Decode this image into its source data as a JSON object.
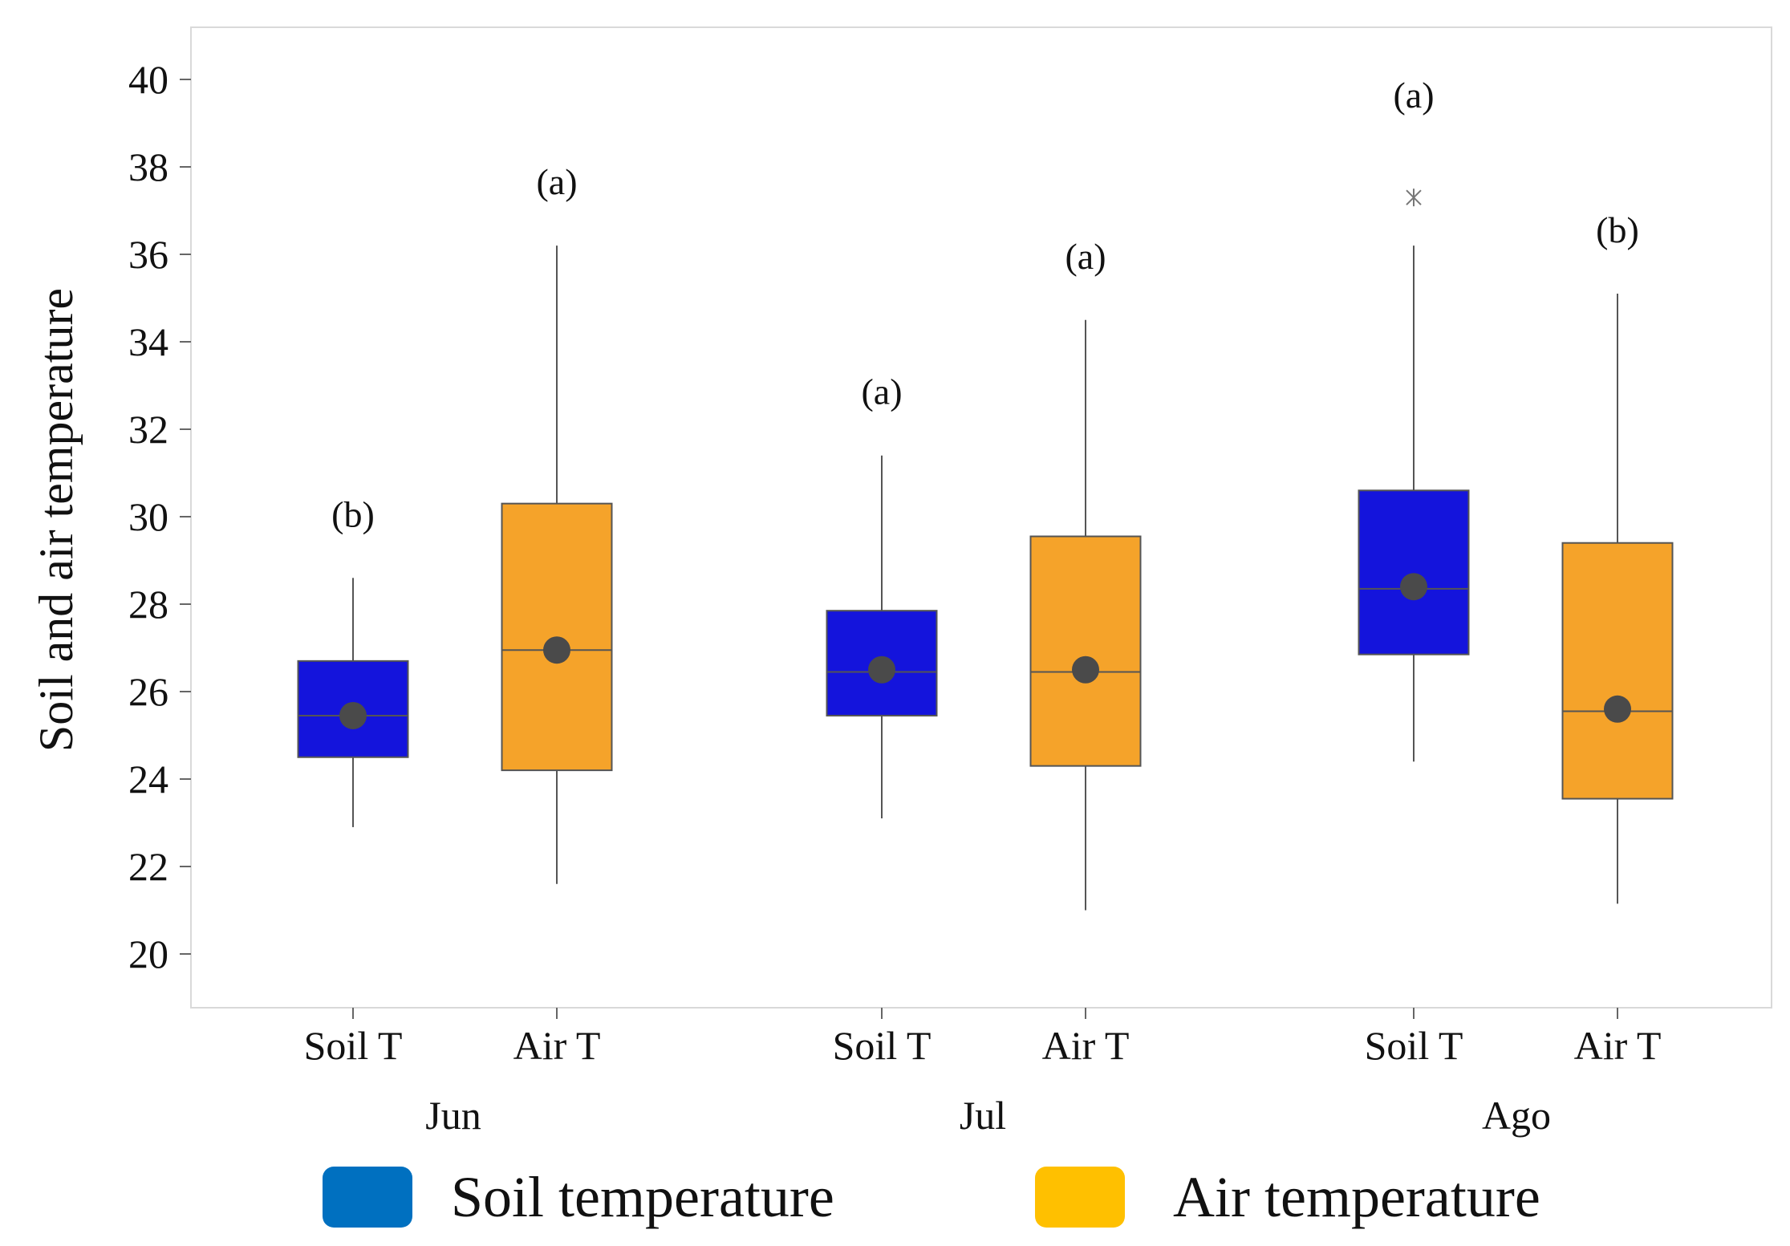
{
  "chart_data": {
    "type": "boxplot",
    "title": "",
    "xlabel": "",
    "ylabel": "Soil and air temperature",
    "ylim": [
      19,
      41
    ],
    "yticks": [
      20,
      22,
      24,
      26,
      28,
      30,
      32,
      34,
      36,
      38,
      40
    ],
    "groups": [
      "Jun",
      "Jul",
      "Ago"
    ],
    "categories": [
      "Soil T",
      "Air T"
    ],
    "series": [
      {
        "name": "Soil temperature",
        "key": "soil",
        "color": "#1414dc"
      },
      {
        "name": "Air temperature",
        "key": "air",
        "color": "#f5a32a"
      }
    ],
    "boxes": [
      {
        "group": "Jun",
        "category": "Soil T",
        "series": "soil",
        "whisker_low": 22.9,
        "q1": 24.5,
        "median": 25.45,
        "q3": 26.7,
        "whisker_high": 28.6,
        "mean": 25.45,
        "label": "(b)"
      },
      {
        "group": "Jun",
        "category": "Air T",
        "series": "air",
        "whisker_low": 21.6,
        "q1": 24.2,
        "median": 26.95,
        "q3": 30.3,
        "whisker_high": 36.2,
        "mean": 26.95,
        "label": "(a)"
      },
      {
        "group": "Jul",
        "category": "Soil T",
        "series": "soil",
        "whisker_low": 23.1,
        "q1": 25.45,
        "median": 26.45,
        "q3": 27.85,
        "whisker_high": 31.4,
        "mean": 26.5,
        "label": "(a)"
      },
      {
        "group": "Jul",
        "category": "Air T",
        "series": "air",
        "whisker_low": 21.0,
        "q1": 24.3,
        "median": 26.45,
        "q3": 29.55,
        "whisker_high": 34.5,
        "mean": 26.5,
        "label": "(a)"
      },
      {
        "group": "Ago",
        "category": "Soil T",
        "series": "soil",
        "whisker_low": 24.4,
        "q1": 26.85,
        "median": 28.35,
        "q3": 30.6,
        "whisker_high": 36.2,
        "mean": 28.4,
        "outliers": [
          37.3
        ],
        "label": "(a)"
      },
      {
        "group": "Ago",
        "category": "Air T",
        "series": "air",
        "whisker_low": 21.15,
        "q1": 23.55,
        "median": 25.55,
        "q3": 29.4,
        "whisker_high": 35.1,
        "mean": 25.6,
        "label": "(b)"
      }
    ],
    "legend": {
      "position": "bottom",
      "items": [
        {
          "label": "Soil temperature",
          "color": "#0070c0"
        },
        {
          "label": "Air temperature",
          "color": "#ffc000"
        }
      ]
    },
    "grid": false
  }
}
